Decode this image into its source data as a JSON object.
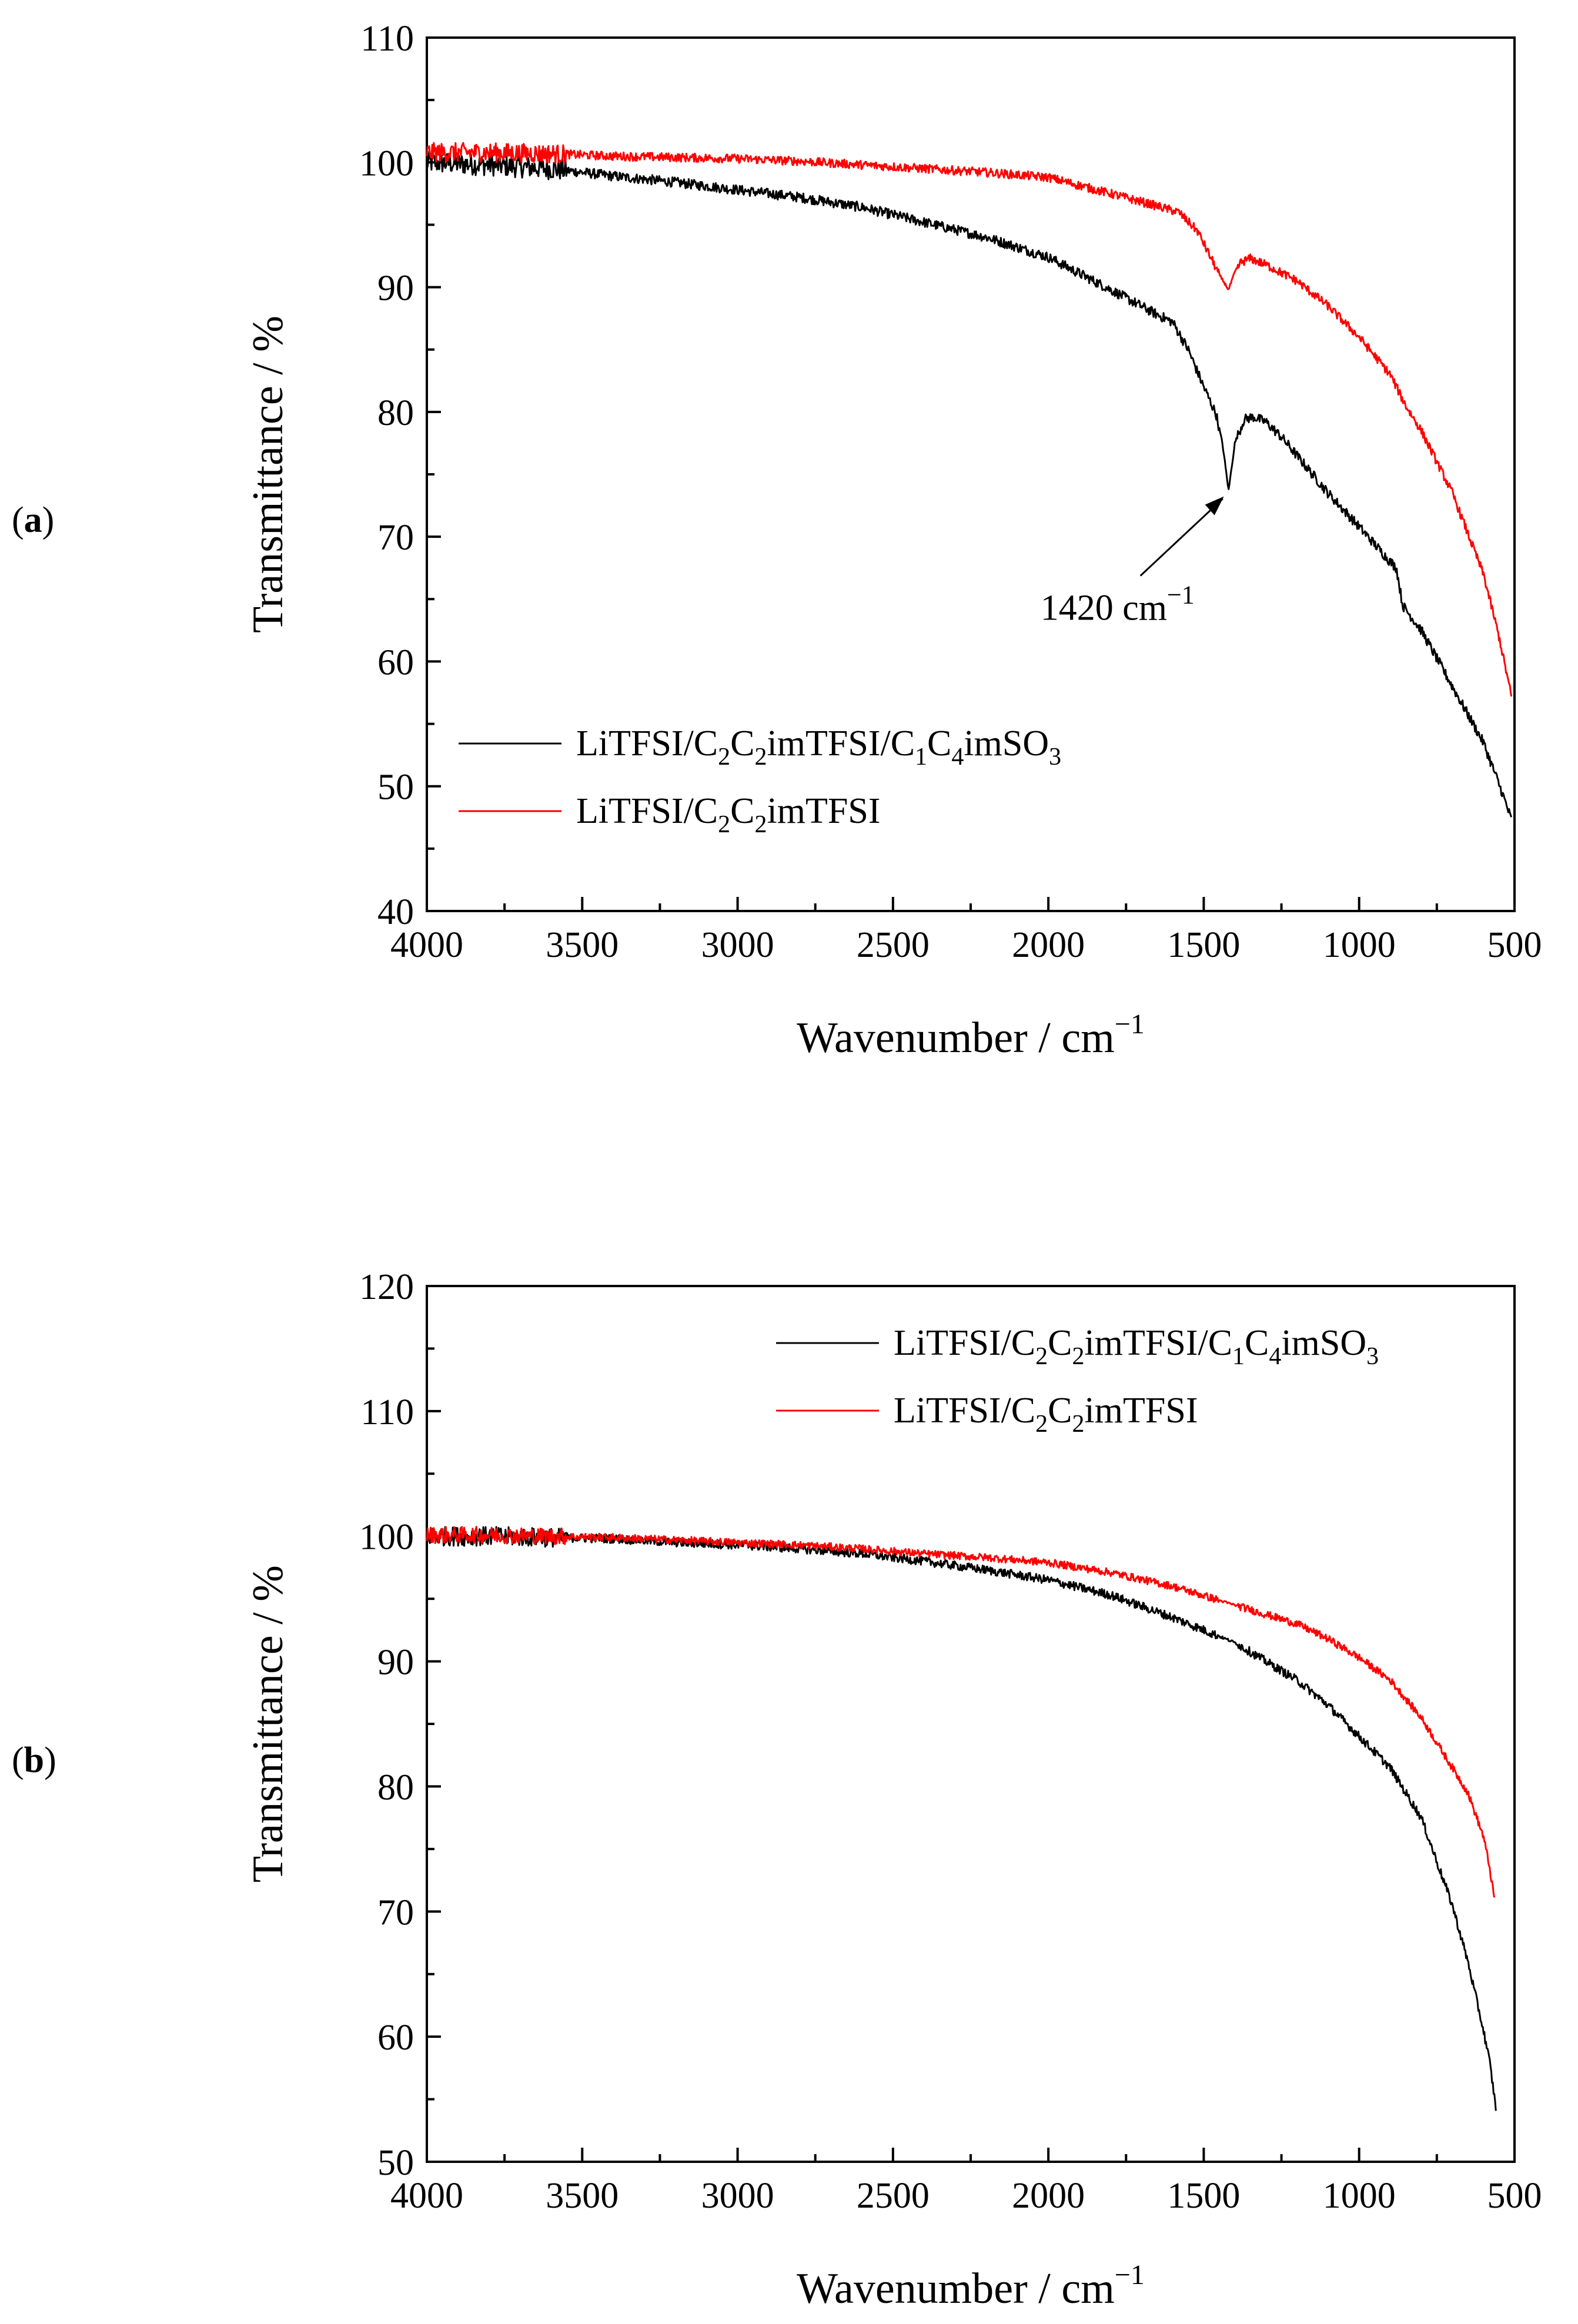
{
  "figure": {
    "panels": [
      "(a)",
      "(b)"
    ]
  },
  "chart_data": [
    {
      "type": "line",
      "panel_label": "(a)",
      "panel_letter": "a",
      "xlabel": "Wavenumber / cm",
      "xlabel_sup": "−1",
      "ylabel": "Transmittance / %",
      "xlim": [
        4000,
        500
      ],
      "ylim": [
        40,
        110
      ],
      "xticks": [
        4000,
        3500,
        3000,
        2500,
        2000,
        1500,
        1000,
        500
      ],
      "yticks": [
        40,
        50,
        60,
        70,
        80,
        90,
        100,
        110
      ],
      "legend_position": "lower-left",
      "series": [
        {
          "name": "LiTFSI/C2C2imTFSI/C1C4imSO3",
          "legend_parts": [
            "LiTFSI/C",
            "2",
            "C",
            "2",
            "imTFSI/C",
            "1",
            "C",
            "4",
            "imSO",
            "3"
          ],
          "color": "#000000",
          "noise": 0.4,
          "x": [
            4000,
            3800,
            3600,
            3400,
            3200,
            3000,
            2800,
            2600,
            2400,
            2200,
            2000,
            1800,
            1650,
            1600,
            1550,
            1500,
            1460,
            1440,
            1420,
            1400,
            1370,
            1340,
            1300,
            1250,
            1200,
            1100,
            1000,
            900,
            880,
            860,
            800,
            700,
            600,
            540,
            510
          ],
          "y": [
            100,
            99.8,
            99.5,
            98.9,
            98.4,
            97.8,
            97.2,
            96.4,
            95.2,
            94.0,
            92.4,
            89.8,
            87.8,
            87.2,
            85.0,
            82.0,
            79.8,
            77.5,
            73.7,
            77.5,
            79.4,
            79.6,
            79.2,
            78.0,
            76.5,
            73.5,
            70.8,
            68.0,
            67.5,
            64.5,
            62.5,
            58.0,
            53.5,
            49.5,
            47.3
          ]
        },
        {
          "name": "LiTFSI/C2C2imTFSI",
          "legend_parts": [
            "LiTFSI/C",
            "2",
            "C",
            "2",
            "imTFSI"
          ],
          "color": "#ff0000",
          "noise": 0.35,
          "x": [
            4000,
            3800,
            3600,
            3400,
            3200,
            3000,
            2800,
            2600,
            2400,
            2200,
            2000,
            1800,
            1650,
            1580,
            1520,
            1480,
            1450,
            1420,
            1400,
            1380,
            1350,
            1300,
            1200,
            1100,
            1000,
            900,
            850,
            800,
            700,
            600,
            550,
            510
          ],
          "y": [
            100.8,
            100.8,
            100.7,
            100.5,
            100.4,
            100.3,
            100.1,
            99.8,
            99.5,
            99.2,
            98.8,
            97.5,
            96.5,
            96.0,
            94.5,
            92.5,
            91.0,
            89.8,
            91.2,
            92.0,
            92.3,
            91.8,
            90.5,
            88.5,
            86.0,
            83.0,
            80.5,
            78.5,
            73.5,
            67.0,
            62.0,
            57.2
          ]
        }
      ],
      "annotations": [
        {
          "text": "1420 cm",
          "sup": "−1",
          "x": 1420,
          "y": 73.7
        }
      ]
    },
    {
      "type": "line",
      "panel_label": "(b)",
      "panel_letter": "b",
      "xlabel": "Wavenumber / cm",
      "xlabel_sup": "−1",
      "ylabel": "Transmittance / %",
      "xlim": [
        4000,
        500
      ],
      "ylim": [
        50,
        120
      ],
      "xticks": [
        4000,
        3500,
        3000,
        2500,
        2000,
        1500,
        1000,
        500
      ],
      "yticks": [
        50,
        60,
        70,
        80,
        90,
        100,
        110,
        120
      ],
      "legend_position": "top-right",
      "series": [
        {
          "name": "LiTFSI/C2C2imTFSI/C1C4imSO3",
          "legend_parts": [
            "LiTFSI/C",
            "2",
            "C",
            "2",
            "imTFSI/C",
            "1",
            "C",
            "4",
            "imSO",
            "3"
          ],
          "color": "#000000",
          "noise": 0.35,
          "x": [
            4000,
            3800,
            3600,
            3400,
            3200,
            3000,
            2800,
            2600,
            2400,
            2200,
            2000,
            1800,
            1600,
            1400,
            1200,
            1100,
            1000,
            900,
            800,
            700,
            650,
            600,
            580,
            560
          ],
          "y": [
            100,
            100,
            99.9,
            99.8,
            99.5,
            99.3,
            99.0,
            98.6,
            98.0,
            97.3,
            96.5,
            95.3,
            93.5,
            91.5,
            88.5,
            86.5,
            84.0,
            81.5,
            77.5,
            70.5,
            66.0,
            60.5,
            58.0,
            54.3
          ]
        },
        {
          "name": "LiTFSI/C2C2imTFSI",
          "legend_parts": [
            "LiTFSI/C",
            "2",
            "C",
            "2",
            "imTFSI"
          ],
          "color": "#ff0000",
          "noise": 0.3,
          "x": [
            4000,
            3800,
            3600,
            3400,
            3200,
            3000,
            2800,
            2600,
            2400,
            2200,
            2000,
            1800,
            1600,
            1400,
            1200,
            1100,
            1000,
            900,
            800,
            700,
            650,
            600,
            580,
            565
          ],
          "y": [
            100.1,
            100.1,
            100.0,
            99.9,
            99.7,
            99.5,
            99.3,
            99.0,
            98.6,
            98.3,
            97.9,
            97.1,
            96.0,
            94.5,
            93.0,
            91.8,
            90.3,
            88.5,
            85.5,
            81.5,
            79.5,
            76.0,
            73.5,
            71.0
          ]
        }
      ],
      "annotations": []
    }
  ]
}
